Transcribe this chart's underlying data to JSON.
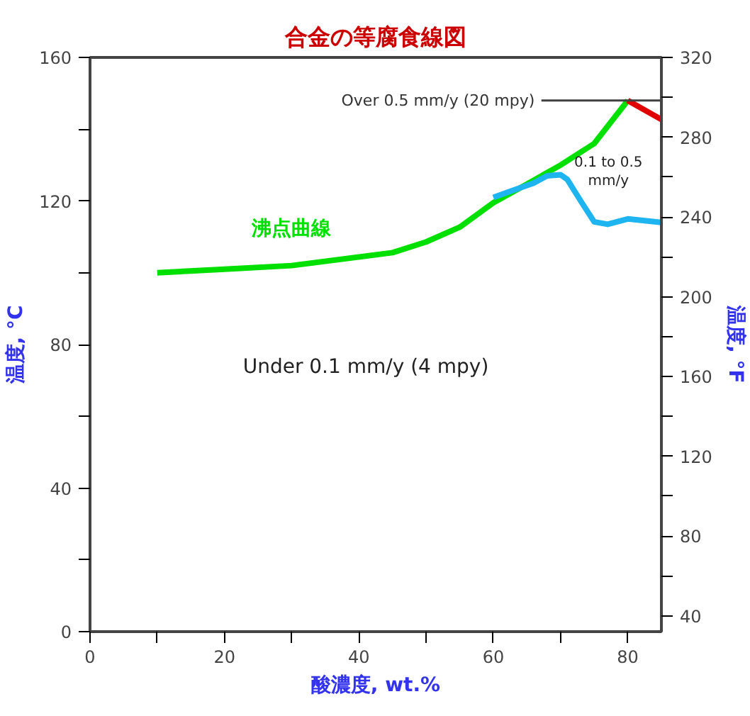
{
  "chart_data": {
    "type": "line",
    "title": "合金の等腐食線図",
    "xlabel": "酸濃度, wt.%",
    "ylabel": "温度, °C",
    "y2label": "温度, °F",
    "xlim": [
      0,
      85
    ],
    "ylim": [
      0,
      160
    ],
    "y2lim": [
      32,
      320
    ],
    "xticks": [
      0,
      {
        "value": 10,
        "label": null
      },
      20,
      {
        "value": 30,
        "label": null
      },
      40,
      {
        "value": 50,
        "label": null
      },
      60,
      {
        "value": 70,
        "label": null
      },
      80
    ],
    "yticks": [
      0,
      {
        "value": 20,
        "label": null
      },
      40,
      {
        "value": 60,
        "label": null
      },
      80,
      {
        "value": 100,
        "label": null
      },
      120,
      {
        "value": 140,
        "label": null
      },
      160
    ],
    "y2ticks": [
      40,
      {
        "value": 60,
        "label": null
      },
      80,
      {
        "value": 100,
        "label": null
      },
      120,
      {
        "value": 140,
        "label": null
      },
      160,
      {
        "value": 180,
        "label": null
      },
      200,
      {
        "value": 220,
        "label": null
      },
      240,
      {
        "value": 260,
        "label": null
      },
      280,
      {
        "value": 300,
        "label": null
      },
      320
    ],
    "grid": false,
    "marker": "none",
    "line_style": "solid",
    "series": [
      {
        "name": "沸点曲線",
        "color": "#00e000",
        "x": [
          10,
          20,
          30,
          45,
          50,
          55,
          60,
          65,
          70,
          75,
          80
        ],
        "values": [
          100,
          101,
          102,
          105.6,
          108.6,
          112.7,
          119.5,
          124.7,
          130,
          136,
          148
        ]
      },
      {
        "color": "#1eb4f0",
        "x": [
          60,
          63,
          66,
          68,
          70,
          71,
          73,
          75,
          77,
          80,
          85
        ],
        "values": [
          121,
          123,
          125,
          127,
          127.3,
          126,
          120,
          114.2,
          113.5,
          115,
          114
        ]
      },
      {
        "color": "#e00000",
        "x": [
          80,
          85
        ],
        "values": [
          148,
          142.7
        ]
      }
    ],
    "ref_lines": [
      {
        "axis": "y",
        "value": 148,
        "label": "Over 0.5 mm/y (20 mpy)",
        "color": "#404040"
      }
    ],
    "annotations": [
      "Under 0.1 mm/y (4 mpy)",
      "0.1 to 0.5\nmm/y"
    ]
  }
}
